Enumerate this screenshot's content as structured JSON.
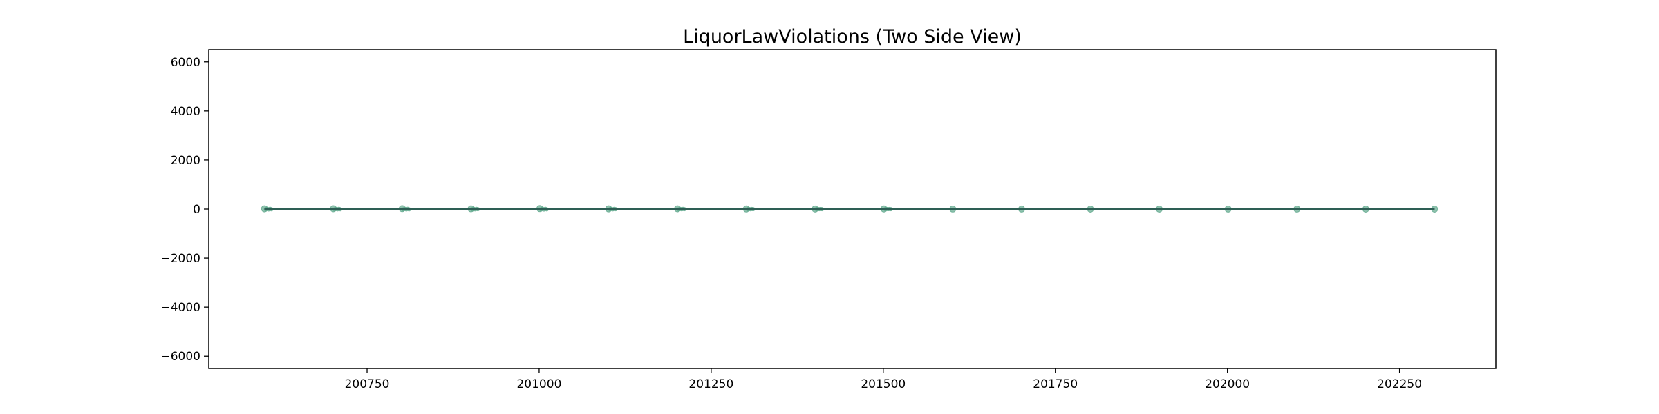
{
  "chart_data": {
    "type": "line",
    "title": "LiquorLawViolations (Two Side View)",
    "xlabel": "",
    "ylabel": "",
    "xlim": [
      200520,
      202390
    ],
    "ylim": [
      -6500,
      6500
    ],
    "x_ticks": [
      200750,
      201000,
      201250,
      201500,
      201750,
      202000,
      202250
    ],
    "x_tick_labels": [
      "200750",
      "201000",
      "201250",
      "201500",
      "201750",
      "202000",
      "202250"
    ],
    "y_ticks": [
      6000,
      4000,
      2000,
      0,
      -2000,
      -4000,
      -6000
    ],
    "y_tick_labels": [
      "6000",
      "4000",
      "2000",
      "0",
      "−2000",
      "−4000",
      "−6000"
    ],
    "grid": false,
    "colors": {
      "line": "#2e5f55",
      "markers": "#5fa88c",
      "axes": "#000000"
    },
    "series": [
      {
        "x": [
          200601,
          200603,
          200605,
          200607,
          200609,
          200611,
          200701,
          200703,
          200705,
          200707,
          200709,
          200711,
          200801,
          200803,
          200805,
          200807,
          200809,
          200811,
          200901,
          200903,
          200905,
          200907,
          200909,
          200911,
          201001,
          201003,
          201005,
          201007,
          201009,
          201011,
          201101,
          201103,
          201105,
          201107,
          201109,
          201111,
          201201,
          201203,
          201205,
          201207,
          201209,
          201211,
          201301,
          201303,
          201305,
          201307,
          201309,
          201311,
          201401,
          201403,
          201405,
          201407,
          201409,
          201411,
          201501,
          201503,
          201505,
          201507,
          201509,
          201511,
          201601,
          201701,
          201801,
          201901,
          202001,
          202101,
          202201,
          202301
        ],
        "values": [
          12,
          -8,
          10,
          -14,
          9,
          -6,
          14,
          -10,
          8,
          -12,
          10,
          -7,
          18,
          -12,
          9,
          -15,
          11,
          -9,
          10,
          -6,
          12,
          -10,
          8,
          -5,
          20,
          -14,
          15,
          -18,
          12,
          -10,
          9,
          -7,
          8,
          -9,
          6,
          -5,
          11,
          -9,
          7,
          -8,
          6,
          -4,
          6,
          -4,
          5,
          -6,
          4,
          -3,
          5,
          -4,
          4,
          -3,
          3,
          -2,
          6,
          -5,
          4,
          -4,
          3,
          -3,
          2,
          2,
          1,
          1,
          1,
          1,
          1,
          0
        ]
      }
    ]
  }
}
